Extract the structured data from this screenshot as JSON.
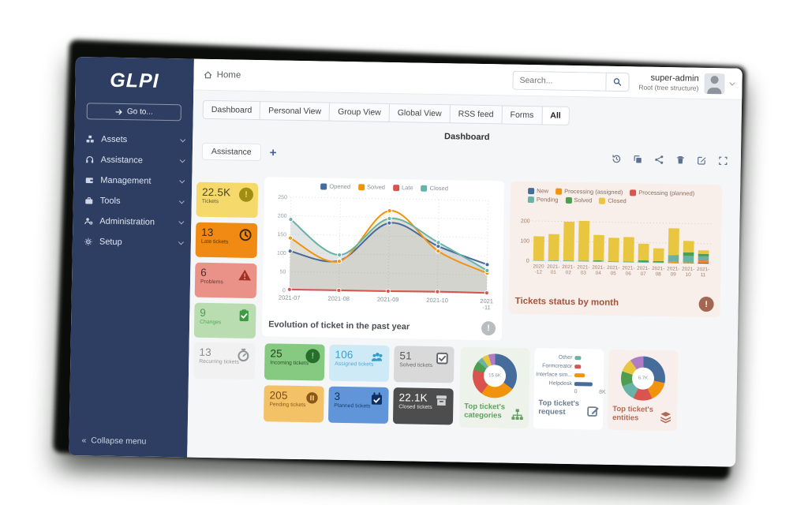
{
  "app": {
    "brand": "GLPI",
    "sidebar": {
      "goto_label": "Go to...",
      "items": [
        {
          "label": "Assets",
          "icon": "boxes-icon"
        },
        {
          "label": "Assistance",
          "icon": "headset-icon"
        },
        {
          "label": "Management",
          "icon": "wallet-icon"
        },
        {
          "label": "Tools",
          "icon": "briefcase-icon"
        },
        {
          "label": "Administration",
          "icon": "user-gear-icon"
        },
        {
          "label": "Setup",
          "icon": "gears-icon"
        }
      ],
      "collapse_label": "Collapse menu"
    },
    "topbar": {
      "breadcrumb": "Home",
      "search_placeholder": "Search...",
      "user_name": "super-admin",
      "user_role": "Root (tree structure)"
    },
    "tabs": [
      "Dashboard",
      "Personal View",
      "Group View",
      "Global View",
      "RSS feed",
      "Forms",
      "All"
    ],
    "active_tab": "All",
    "dashboard": {
      "title": "Dashboard",
      "scope_select": "Assistance",
      "add_label": "+",
      "toolbar_icons": [
        "history-icon",
        "clone-icon",
        "share-icon",
        "trash-icon",
        "edit-icon",
        "maximize-icon"
      ]
    },
    "cards": {
      "tickets": {
        "value": "22.5K",
        "label": "Tickets",
        "bg": "#f6d96b",
        "fg": "#4a452b",
        "icon": "#a08d13"
      },
      "late": {
        "value": "13",
        "label": "Late tickets",
        "bg": "#f08a12",
        "fg": "#3f2a05",
        "icon": "#3c2a08"
      },
      "problems": {
        "value": "6",
        "label": "Problems",
        "bg": "#ea9287",
        "fg": "#4a2c28",
        "icon": "#a33225"
      },
      "changes": {
        "value": "9",
        "label": "Changes",
        "bg": "#b9ddb1",
        "fg": "#4e9b4e",
        "icon": "#3f9a44"
      },
      "recurring": {
        "value": "13",
        "label": "Recurring tickets",
        "bg": "#f1f1f1",
        "fg": "#8c8c8c",
        "icon": "#8f959b"
      },
      "incoming": {
        "value": "25",
        "label": "Incoming tickets",
        "bg": "#85ca80",
        "fg": "#1d4220",
        "icon": "#256e2b"
      },
      "assigned": {
        "value": "106",
        "label": "Assigned tickets",
        "bg": "#cfeaf7",
        "fg": "#38a1d4",
        "icon": "#2d9ecf"
      },
      "solved": {
        "value": "51",
        "label": "Solved tickets",
        "bg": "#d9d9d9",
        "fg": "#5a5a5a",
        "icon": "#5f6368"
      },
      "pending": {
        "value": "205",
        "label": "Pending tickets",
        "bg": "#f4c266",
        "fg": "#7c4a0e",
        "icon": "#8a571a"
      },
      "planned": {
        "value": "3",
        "label": "Planned tickets",
        "bg": "#6096d9",
        "fg": "#0e2f5e",
        "icon": "#0f2f60"
      },
      "closed": {
        "value": "22.1K",
        "label": "Closed tickets",
        "bg": "#4d4d4d",
        "fg": "#ffffff",
        "icon": "#cfd2d6"
      }
    }
  },
  "chart_data": [
    {
      "type": "line",
      "title": "Evolution of ticket in the past year",
      "categories": [
        "2021-07",
        "2021-08",
        "2021-09",
        "2021-10",
        "2021-11"
      ],
      "ylim": [
        0,
        250
      ],
      "yticks": [
        0,
        50,
        100,
        150,
        200,
        250
      ],
      "legend_position": "top",
      "series": [
        {
          "name": "Opened",
          "color": "#466c9c",
          "fill": "rgba(70,108,156,0.10)",
          "values": [
            105,
            82,
            185,
            125,
            78
          ]
        },
        {
          "name": "Solved",
          "color": "#f2930d",
          "fill": "rgba(242,147,13,0.08)",
          "values": [
            140,
            80,
            218,
            112,
            55
          ]
        },
        {
          "name": "Late",
          "color": "#d9534f",
          "values": [
            2,
            2,
            2,
            3,
            2
          ]
        },
        {
          "name": "Closed",
          "color": "#68b3a5",
          "fill": "rgba(125,138,138,0.22)",
          "values": [
            190,
            97,
            197,
            135,
            62
          ]
        }
      ]
    },
    {
      "type": "bar",
      "stacked": true,
      "title": "Tickets status by month",
      "categories": [
        "2020-12",
        "2021-01",
        "2021-02",
        "2021-03",
        "2021-04",
        "2021-05",
        "2021-06",
        "2021-07",
        "2021-08",
        "2021-09",
        "2021-10",
        "2021-11"
      ],
      "ylim": [
        0,
        200
      ],
      "yticks": [
        0,
        100,
        200
      ],
      "legend_position": "top",
      "series": [
        {
          "name": "New",
          "color": "#466c9c",
          "values": [
            0,
            0,
            0,
            0,
            0,
            0,
            0,
            0,
            0,
            2,
            2,
            5
          ]
        },
        {
          "name": "Processing (assigned)",
          "color": "#f2930d",
          "values": [
            0,
            0,
            0,
            0,
            0,
            0,
            0,
            0,
            0,
            6,
            3,
            9
          ]
        },
        {
          "name": "Processing (planned)",
          "color": "#d9534f",
          "values": [
            0,
            0,
            0,
            0,
            0,
            0,
            0,
            0,
            0,
            0,
            0,
            2
          ]
        },
        {
          "name": "Pending",
          "color": "#68b3a5",
          "values": [
            3,
            3,
            4,
            4,
            3,
            4,
            5,
            3,
            3,
            30,
            33,
            22
          ]
        },
        {
          "name": "Solved",
          "color": "#4f9e4f",
          "values": [
            0,
            0,
            0,
            0,
            4,
            0,
            0,
            8,
            6,
            2,
            17,
            11
          ]
        },
        {
          "name": "Closed",
          "color": "#e9c63f",
          "values": [
            120,
            132,
            195,
            200,
            128,
            118,
            122,
            84,
            64,
            135,
            58,
            18
          ]
        }
      ]
    },
    {
      "type": "pie",
      "title": "Top ticket's categories",
      "center_label": "15.6K",
      "values": [
        35,
        25,
        19,
        7,
        4,
        5,
        5
      ],
      "colors": [
        "#466c9c",
        "#f2930d",
        "#d9534f",
        "#4f9e4f",
        "#68b3a5",
        "#e9c63f",
        "#b07cc6"
      ]
    },
    {
      "type": "bar",
      "orientation": "horizontal",
      "title": "Top ticket's request",
      "categories": [
        "Other",
        "Formcreator",
        "Interface sim...",
        "Helpdesk"
      ],
      "values": [
        1.5,
        1.5,
        2.5,
        4.6
      ],
      "colors": [
        "#68b3a5",
        "#d9534f",
        "#f2930d",
        "#466c9c"
      ],
      "xlim": [
        0,
        8
      ],
      "xticks": [
        "0",
        "8K"
      ]
    },
    {
      "type": "pie",
      "title": "Top ticket's entities",
      "center_label": "6.7K",
      "values": [
        28,
        15,
        14,
        12,
        11,
        10,
        10
      ],
      "colors": [
        "#466c9c",
        "#f2930d",
        "#d9534f",
        "#68b3a5",
        "#4f9e4f",
        "#e9c63f",
        "#b07cc6"
      ]
    }
  ]
}
